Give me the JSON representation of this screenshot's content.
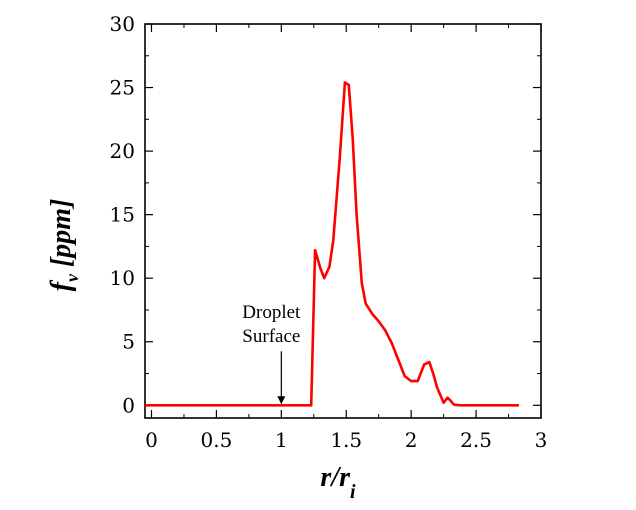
{
  "chart_data": {
    "type": "line",
    "title": "",
    "xlabel": {
      "main": "r/r",
      "sub": "i"
    },
    "ylabel": {
      "main": "f",
      "sub": "v",
      "rest": " [ppm]"
    },
    "xlim": [
      -0.05,
      3
    ],
    "ylim": [
      -1,
      30
    ],
    "xticks": [
      0,
      0.5,
      1,
      1.5,
      2,
      2.5,
      3
    ],
    "xtick_labels": [
      "0",
      "0.5",
      "1",
      "1.5",
      "2",
      "2.5",
      "3"
    ],
    "yticks": [
      0,
      5,
      10,
      15,
      20,
      25,
      30
    ],
    "ytick_labels": [
      "0",
      "5",
      "10",
      "15",
      "20",
      "25",
      "30"
    ],
    "grid": false,
    "series": [
      {
        "color": "#ff0000",
        "x": [
          -0.05,
          1.0,
          1.2,
          1.23,
          1.26,
          1.3,
          1.33,
          1.37,
          1.4,
          1.45,
          1.49,
          1.52,
          1.55,
          1.58,
          1.62,
          1.65,
          1.7,
          1.75,
          1.8,
          1.85,
          1.9,
          1.95,
          2.0,
          2.05,
          2.1,
          2.14,
          2.17,
          2.2,
          2.25,
          2.28,
          2.3,
          2.33,
          2.38,
          2.5,
          2.7,
          2.83
        ],
        "y": [
          0,
          0,
          0,
          0,
          12.2,
          10.8,
          10.0,
          10.9,
          13.0,
          19.5,
          25.4,
          25.2,
          21.0,
          15.0,
          9.6,
          8.0,
          7.2,
          6.6,
          5.9,
          4.9,
          3.6,
          2.3,
          1.9,
          1.9,
          3.2,
          3.4,
          2.5,
          1.4,
          0.2,
          0.6,
          0.4,
          0.05,
          0,
          0,
          0,
          0
        ]
      }
    ],
    "annotation": {
      "lines": [
        "Droplet",
        "Surface"
      ],
      "x": 1.0,
      "y": 0
    }
  }
}
